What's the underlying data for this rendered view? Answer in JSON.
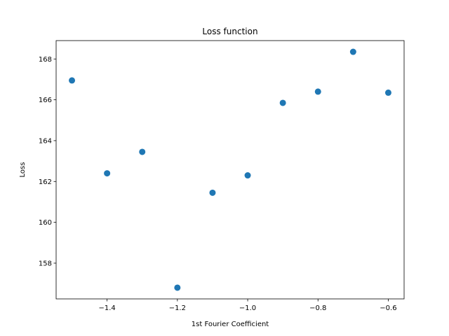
{
  "chart_data": {
    "type": "scatter",
    "title": "Loss function",
    "xlabel": "1st Fourier Coefficient",
    "ylabel": "Loss",
    "xlim": [
      -1.545,
      -0.555
    ],
    "ylim": [
      156.25,
      168.9
    ],
    "grid": false,
    "x_ticks": [
      -1.4,
      -1.2,
      -1.0,
      -0.8,
      -0.6
    ],
    "x_tick_labels": [
      "−1.4",
      "−1.2",
      "−1.0",
      "−0.8",
      "−0.6"
    ],
    "y_ticks": [
      158,
      160,
      162,
      164,
      166,
      168
    ],
    "y_tick_labels": [
      "158",
      "160",
      "162",
      "164",
      "166",
      "168"
    ],
    "series": [
      {
        "color": "#1f77b4",
        "points": [
          {
            "x": -1.5,
            "y": 166.95
          },
          {
            "x": -1.4,
            "y": 162.4
          },
          {
            "x": -1.3,
            "y": 163.45
          },
          {
            "x": -1.2,
            "y": 156.8
          },
          {
            "x": -1.1,
            "y": 161.45
          },
          {
            "x": -1.0,
            "y": 162.3
          },
          {
            "x": -0.9,
            "y": 165.85
          },
          {
            "x": -0.8,
            "y": 166.4
          },
          {
            "x": -0.7,
            "y": 168.35
          },
          {
            "x": -0.6,
            "y": 166.35
          }
        ]
      }
    ]
  }
}
